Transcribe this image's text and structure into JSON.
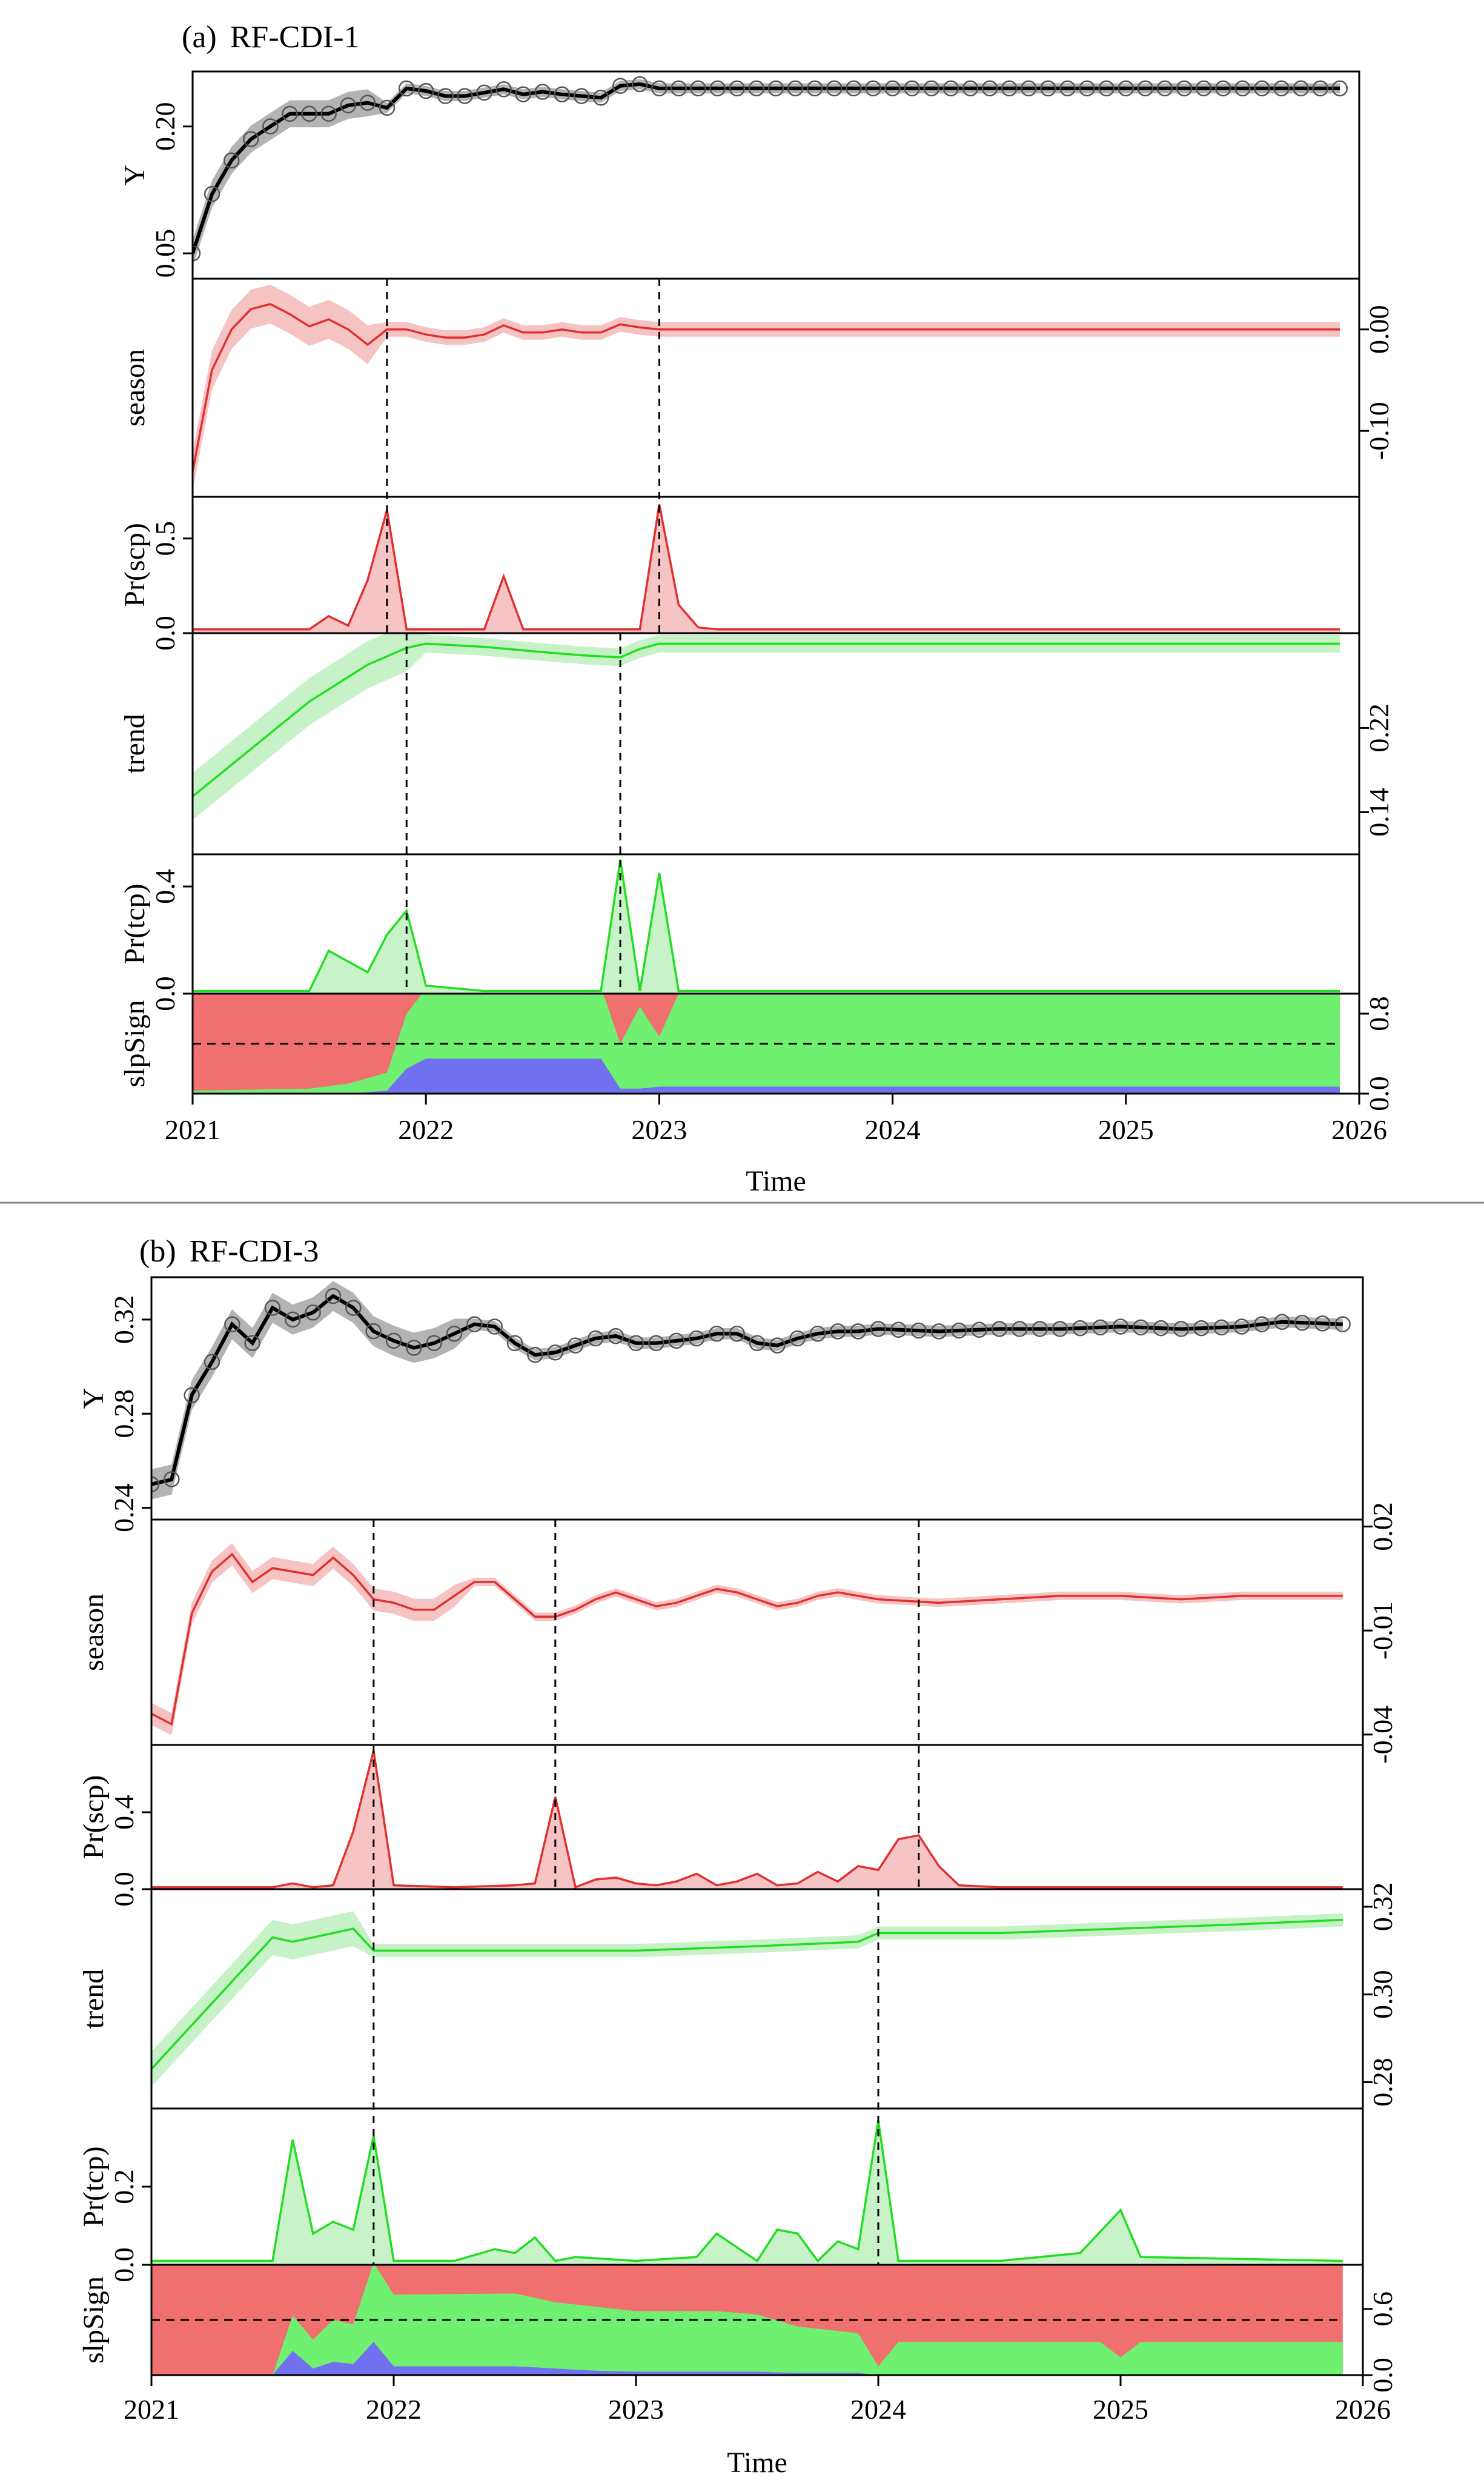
{
  "chart_data": [
    {
      "type": "line",
      "panel_label": "(a)",
      "title": "RF-CDI-1",
      "xlabel": "Time",
      "x_ticks": [
        "2021",
        "2022",
        "2023",
        "2024",
        "2025",
        "2026"
      ],
      "xlim": [
        2021,
        2026
      ],
      "colors": {
        "Y": "#000000",
        "season": "#e03030",
        "trend": "#22dd22",
        "neg": "#f07070",
        "zero": "#70f070",
        "pos": "#7070f0"
      },
      "subplots": [
        {
          "name": "Y",
          "ylabel": "Y",
          "axis_side": "left",
          "ylim": [
            0.02,
            0.265
          ],
          "ticks": [
            "0.05",
            "0.20"
          ],
          "tick_values": [
            0.05,
            0.2
          ],
          "band_width": 0.01,
          "x": [
            2021.0,
            2021.083,
            2021.167,
            2021.25,
            2021.333,
            2021.417,
            2021.5,
            2021.583,
            2021.667,
            2021.75,
            2021.833,
            2021.917,
            2022.0,
            2022.083,
            2022.167,
            2022.25,
            2022.333,
            2022.417,
            2022.5,
            2022.583,
            2022.667,
            2022.75,
            2022.833,
            2022.917,
            2023.0,
            2025.917
          ],
          "values": [
            0.05,
            0.12,
            0.16,
            0.185,
            0.2,
            0.215,
            0.215,
            0.215,
            0.225,
            0.228,
            0.222,
            0.245,
            0.242,
            0.236,
            0.236,
            0.24,
            0.244,
            0.238,
            0.241,
            0.238,
            0.236,
            0.234,
            0.248,
            0.25,
            0.245,
            0.245
          ]
        },
        {
          "name": "season",
          "ylabel": "season",
          "axis_side": "right",
          "ylim": [
            -0.165,
            0.05
          ],
          "ticks": [
            "-0.10",
            "0.00"
          ],
          "tick_values": [
            -0.1,
            0.0
          ],
          "band_width": 0.012,
          "x": [
            2021.0,
            2021.083,
            2021.167,
            2021.25,
            2021.333,
            2021.417,
            2021.5,
            2021.583,
            2021.667,
            2021.75,
            2021.833,
            2021.917,
            2022.0,
            2022.083,
            2022.167,
            2022.25,
            2022.333,
            2022.417,
            2022.5,
            2022.583,
            2022.667,
            2022.75,
            2022.833,
            2022.917,
            2023.0,
            2025.917
          ],
          "values": [
            -0.14,
            -0.04,
            0.0,
            0.02,
            0.025,
            0.015,
            0.003,
            0.01,
            0.0,
            -0.015,
            0.0,
            0.0,
            -0.005,
            -0.008,
            -0.008,
            -0.005,
            0.004,
            -0.003,
            -0.003,
            0.0,
            -0.003,
            -0.003,
            0.005,
            0.002,
            0.0,
            0.0
          ]
        },
        {
          "name": "Pr(scp)",
          "ylabel": "Pr(scp)",
          "axis_side": "left",
          "kind": "prob",
          "ylim": [
            0,
            0.72
          ],
          "ticks": [
            "0.0",
            "0.5"
          ],
          "tick_values": [
            0.0,
            0.5
          ],
          "x": [
            2021.0,
            2021.5,
            2021.583,
            2021.667,
            2021.75,
            2021.833,
            2021.917,
            2022.0,
            2022.25,
            2022.333,
            2022.417,
            2022.5,
            2022.583,
            2022.917,
            2023.0,
            2023.083,
            2023.167,
            2023.25,
            2025.917
          ],
          "values": [
            0.02,
            0.02,
            0.09,
            0.04,
            0.28,
            0.65,
            0.02,
            0.02,
            0.02,
            0.3,
            0.02,
            0.02,
            0.02,
            0.02,
            0.68,
            0.15,
            0.03,
            0.02,
            0.02
          ]
        },
        {
          "name": "trend",
          "ylabel": "trend",
          "axis_side": "right",
          "ylim": [
            0.1,
            0.31
          ],
          "ticks": [
            "0.14",
            "0.22"
          ],
          "tick_values": [
            0.14,
            0.22
          ],
          "band_width": 0.014,
          "x": [
            2021.0,
            2021.25,
            2021.5,
            2021.75,
            2021.917,
            2022.0,
            2022.25,
            2022.5,
            2022.667,
            2022.833,
            2022.917,
            2023.0,
            2025.917
          ],
          "values": [
            0.155,
            0.2,
            0.245,
            0.28,
            0.296,
            0.3,
            0.297,
            0.292,
            0.289,
            0.287,
            0.295,
            0.3,
            0.3
          ]
        },
        {
          "name": "Pr(tcp)",
          "ylabel": "Pr(tcp)",
          "axis_side": "left",
          "kind": "prob",
          "ylim": [
            0,
            0.52
          ],
          "ticks": [
            "0.0",
            "0.4"
          ],
          "tick_values": [
            0.0,
            0.4
          ],
          "x": [
            2021.0,
            2021.5,
            2021.583,
            2021.75,
            2021.833,
            2021.917,
            2022.0,
            2022.25,
            2022.5,
            2022.75,
            2022.833,
            2022.917,
            2023.0,
            2023.083,
            2023.167,
            2025.917
          ],
          "values": [
            0.01,
            0.01,
            0.16,
            0.08,
            0.22,
            0.31,
            0.03,
            0.01,
            0.01,
            0.01,
            0.5,
            0.01,
            0.45,
            0.01,
            0.01,
            0.01
          ]
        },
        {
          "name": "slpSign",
          "ylabel": "slpSign",
          "axis_side": "right",
          "kind": "slpsign",
          "ylim": [
            0,
            1
          ],
          "ticks": [
            "0.0",
            "0.8"
          ],
          "tick_values": [
            0.0,
            0.8
          ],
          "dashed_level": 0.5,
          "x": [
            2021.0,
            2021.5,
            2021.667,
            2021.833,
            2021.917,
            2022.0,
            2022.5,
            2022.75,
            2022.833,
            2022.917,
            2023.0,
            2023.083,
            2023.167,
            2025.917
          ],
          "pos_share": [
            0.0,
            0.0,
            0.0,
            0.03,
            0.25,
            0.35,
            0.35,
            0.35,
            0.05,
            0.05,
            0.07,
            0.07,
            0.07,
            0.07
          ],
          "zero_share": [
            0.03,
            0.05,
            0.1,
            0.18,
            0.55,
            0.7,
            0.72,
            0.72,
            0.45,
            0.82,
            0.5,
            0.93,
            0.93,
            0.93
          ]
        }
      ],
      "changepoints": [
        {
          "panel": "season",
          "x": 2021.833
        },
        {
          "panel": "season",
          "x": 2023.0
        },
        {
          "panel": "trend",
          "x": 2021.917
        },
        {
          "panel": "trend",
          "x": 2022.833
        }
      ]
    },
    {
      "type": "line",
      "panel_label": "(b)",
      "title": "RF-CDI-3",
      "xlabel": "Time",
      "x_ticks": [
        "2021",
        "2022",
        "2023",
        "2024",
        "2025",
        "2026"
      ],
      "xlim": [
        2021,
        2026
      ],
      "colors": {
        "Y": "#000000",
        "season": "#e03030",
        "trend": "#22dd22",
        "neg": "#f07070",
        "zero": "#70f070",
        "pos": "#7070f0"
      },
      "subplots": [
        {
          "name": "Y",
          "ylabel": "Y",
          "axis_side": "left",
          "ylim": [
            0.235,
            0.338
          ],
          "ticks": [
            "0.24",
            "0.28",
            "0.32"
          ],
          "tick_values": [
            0.24,
            0.28,
            0.32
          ],
          "band_width": 0.004,
          "x": [
            2021.0,
            2021.083,
            2021.167,
            2021.25,
            2021.333,
            2021.417,
            2021.5,
            2021.583,
            2021.667,
            2021.75,
            2021.833,
            2021.917,
            2022.0,
            2022.083,
            2022.167,
            2022.25,
            2022.333,
            2022.417,
            2022.5,
            2022.583,
            2022.667,
            2022.75,
            2022.833,
            2022.917,
            2023.0,
            2023.083,
            2023.167,
            2023.25,
            2023.333,
            2023.417,
            2023.5,
            2023.583,
            2023.667,
            2023.75,
            2023.833,
            2023.917,
            2024.0,
            2024.25,
            2024.5,
            2024.75,
            2025.0,
            2025.25,
            2025.5,
            2025.667,
            2025.917
          ],
          "values": [
            0.25,
            0.252,
            0.288,
            0.302,
            0.318,
            0.31,
            0.325,
            0.32,
            0.323,
            0.33,
            0.325,
            0.315,
            0.311,
            0.308,
            0.31,
            0.314,
            0.318,
            0.317,
            0.31,
            0.305,
            0.306,
            0.309,
            0.312,
            0.313,
            0.31,
            0.31,
            0.311,
            0.312,
            0.314,
            0.314,
            0.31,
            0.309,
            0.312,
            0.314,
            0.315,
            0.315,
            0.316,
            0.315,
            0.316,
            0.316,
            0.317,
            0.316,
            0.317,
            0.319,
            0.318
          ]
        },
        {
          "name": "season",
          "ylabel": "season",
          "axis_side": "right",
          "ylim": [
            -0.043,
            0.022
          ],
          "ticks": [
            "-0.04",
            "-0.01",
            "0.02"
          ],
          "tick_values": [
            -0.04,
            -0.01,
            0.02
          ],
          "band_width": 0.002,
          "x": [
            2021.0,
            2021.083,
            2021.167,
            2021.25,
            2021.333,
            2021.417,
            2021.5,
            2021.583,
            2021.667,
            2021.75,
            2021.833,
            2021.917,
            2022.0,
            2022.083,
            2022.167,
            2022.25,
            2022.333,
            2022.417,
            2022.5,
            2022.583,
            2022.667,
            2022.75,
            2022.833,
            2022.917,
            2023.0,
            2023.083,
            2023.167,
            2023.25,
            2023.333,
            2023.417,
            2023.5,
            2023.583,
            2023.667,
            2023.75,
            2023.833,
            2023.917,
            2024.0,
            2024.25,
            2024.5,
            2024.75,
            2025.0,
            2025.25,
            2025.5,
            2025.667,
            2025.917
          ],
          "values": [
            -0.034,
            -0.037,
            -0.005,
            0.007,
            0.012,
            0.004,
            0.008,
            0.007,
            0.006,
            0.011,
            0.006,
            -0.001,
            -0.002,
            -0.004,
            -0.004,
            0.0,
            0.004,
            0.004,
            -0.001,
            -0.006,
            -0.006,
            -0.004,
            -0.001,
            0.001,
            -0.001,
            -0.003,
            -0.002,
            0.0,
            0.002,
            0.001,
            -0.001,
            -0.003,
            -0.002,
            0.0,
            0.001,
            0.0,
            -0.001,
            -0.002,
            -0.001,
            0.0,
            0.0,
            -0.001,
            0.0,
            0.0,
            0.0
          ]
        },
        {
          "name": "Pr(scp)",
          "ylabel": "Pr(scp)",
          "axis_side": "left",
          "kind": "prob",
          "ylim": [
            0,
            0.75
          ],
          "ticks": [
            "0.0",
            "0.4"
          ],
          "tick_values": [
            0.0,
            0.4
          ],
          "x": [
            2021.0,
            2021.5,
            2021.583,
            2021.667,
            2021.75,
            2021.833,
            2021.917,
            2022.0,
            2022.25,
            2022.5,
            2022.583,
            2022.667,
            2022.75,
            2022.833,
            2022.917,
            2023.0,
            2023.083,
            2023.167,
            2023.25,
            2023.333,
            2023.417,
            2023.5,
            2023.583,
            2023.667,
            2023.75,
            2023.833,
            2023.917,
            2024.0,
            2024.083,
            2024.167,
            2024.25,
            2024.333,
            2024.5,
            2025.917
          ],
          "values": [
            0.01,
            0.01,
            0.03,
            0.01,
            0.02,
            0.3,
            0.72,
            0.02,
            0.01,
            0.02,
            0.03,
            0.48,
            0.01,
            0.05,
            0.06,
            0.03,
            0.02,
            0.04,
            0.08,
            0.02,
            0.04,
            0.08,
            0.02,
            0.03,
            0.09,
            0.04,
            0.12,
            0.1,
            0.26,
            0.28,
            0.12,
            0.02,
            0.01,
            0.01
          ]
        },
        {
          "name": "trend",
          "ylabel": "trend",
          "axis_side": "right",
          "ylim": [
            0.274,
            0.324
          ],
          "ticks": [
            "0.28",
            "0.30",
            "0.32"
          ],
          "tick_values": [
            0.28,
            0.3,
            0.32
          ],
          "band_width": 0.0025,
          "x": [
            2021.0,
            2021.25,
            2021.5,
            2021.583,
            2021.75,
            2021.833,
            2021.917,
            2022.0,
            2022.5,
            2023.0,
            2023.5,
            2023.917,
            2024.0,
            2024.5,
            2025.0,
            2025.5,
            2025.917
          ],
          "values": [
            0.283,
            0.298,
            0.313,
            0.312,
            0.314,
            0.315,
            0.31,
            0.31,
            0.31,
            0.31,
            0.311,
            0.312,
            0.314,
            0.314,
            0.315,
            0.316,
            0.317
          ]
        },
        {
          "name": "Pr(tcp)",
          "ylabel": "Pr(tcp)",
          "axis_side": "left",
          "kind": "prob",
          "ylim": [
            0,
            0.4
          ],
          "ticks": [
            "0.0",
            "0.2"
          ],
          "tick_values": [
            0.0,
            0.2
          ],
          "x": [
            2021.0,
            2021.5,
            2021.583,
            2021.667,
            2021.75,
            2021.833,
            2021.917,
            2022.0,
            2022.25,
            2022.417,
            2022.5,
            2022.583,
            2022.667,
            2022.75,
            2023.0,
            2023.25,
            2023.333,
            2023.5,
            2023.583,
            2023.667,
            2023.75,
            2023.833,
            2023.917,
            2024.0,
            2024.083,
            2024.5,
            2024.833,
            2025.0,
            2025.083,
            2025.917
          ],
          "values": [
            0.01,
            0.01,
            0.32,
            0.08,
            0.11,
            0.09,
            0.33,
            0.01,
            0.01,
            0.04,
            0.03,
            0.07,
            0.01,
            0.02,
            0.01,
            0.02,
            0.08,
            0.01,
            0.09,
            0.08,
            0.01,
            0.06,
            0.04,
            0.37,
            0.01,
            0.01,
            0.03,
            0.14,
            0.02,
            0.01
          ]
        },
        {
          "name": "slpSign",
          "ylabel": "slpSign",
          "axis_side": "right",
          "kind": "slpsign",
          "ylim": [
            0,
            1
          ],
          "ticks": [
            "0.0",
            "0.6"
          ],
          "tick_values": [
            0.0,
            0.6
          ],
          "dashed_level": 0.5,
          "x": [
            2021.0,
            2021.5,
            2021.583,
            2021.667,
            2021.75,
            2021.833,
            2021.917,
            2022.0,
            2022.5,
            2022.667,
            2022.833,
            2023.0,
            2023.333,
            2023.5,
            2023.667,
            2023.917,
            2024.0,
            2024.083,
            2024.5,
            2024.917,
            2025.0,
            2025.083,
            2025.917
          ],
          "pos_share": [
            0.0,
            0.0,
            0.22,
            0.06,
            0.12,
            0.1,
            0.3,
            0.08,
            0.08,
            0.06,
            0.04,
            0.03,
            0.03,
            0.03,
            0.02,
            0.02,
            0.0,
            0.0,
            0.0,
            0.0,
            0.0,
            0.0,
            0.0
          ],
          "zero_share": [
            0.0,
            0.0,
            0.32,
            0.26,
            0.38,
            0.36,
            0.72,
            0.65,
            0.66,
            0.6,
            0.58,
            0.55,
            0.55,
            0.52,
            0.42,
            0.36,
            0.08,
            0.3,
            0.3,
            0.3,
            0.16,
            0.3,
            0.3
          ]
        }
      ],
      "changepoints": [
        {
          "panel": "season",
          "x": 2021.917
        },
        {
          "panel": "season",
          "x": 2022.667
        },
        {
          "panel": "season",
          "x": 2024.167
        },
        {
          "panel": "trend",
          "x": 2021.917
        },
        {
          "panel": "trend",
          "x": 2024.0
        }
      ]
    }
  ]
}
